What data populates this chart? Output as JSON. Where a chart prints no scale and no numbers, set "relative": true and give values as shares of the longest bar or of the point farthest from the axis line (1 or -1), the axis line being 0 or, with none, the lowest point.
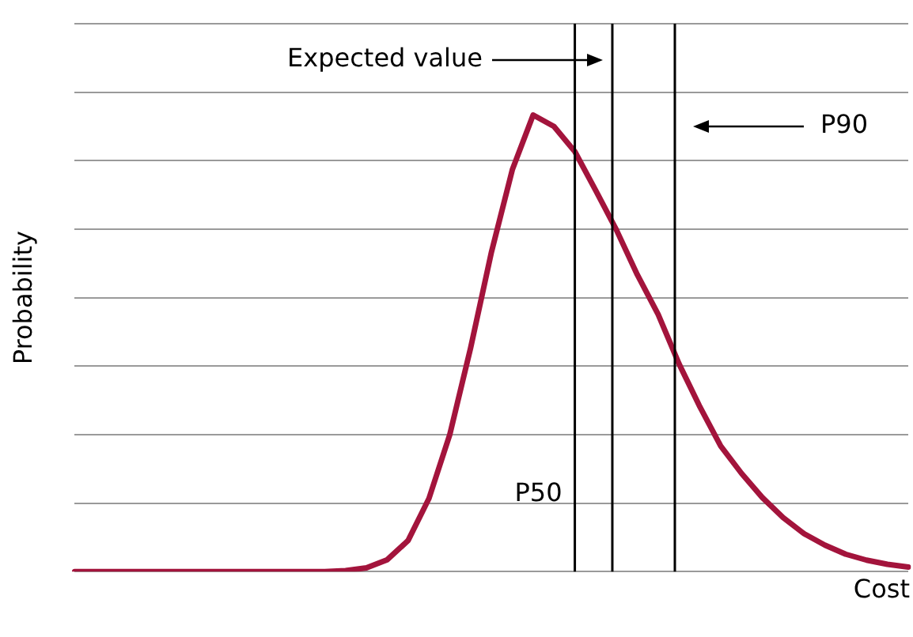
{
  "chart_data": {
    "type": "line",
    "xlabel": "Cost",
    "ylabel": "Probability",
    "relative": true,
    "grid": "y",
    "legend": false,
    "marker": "none",
    "line_style": "solid",
    "categories": [
      null,
      null,
      null,
      null,
      null,
      null,
      null,
      null,
      null,
      null,
      null,
      null,
      null,
      null,
      null,
      null,
      null,
      null,
      null,
      null,
      null,
      null,
      null,
      null,
      null,
      null,
      null,
      null,
      null,
      null,
      null,
      null,
      null,
      null,
      null,
      null,
      null,
      null,
      null,
      null,
      null
    ],
    "series": [
      {
        "color": "#a3143c",
        "values": [
          0,
          0,
          0,
          0,
          0,
          0,
          0,
          0,
          0,
          0,
          0,
          0,
          0,
          0.002,
          0.008,
          0.026,
          0.068,
          0.16,
          0.3,
          0.49,
          0.7,
          0.88,
          1,
          0.975,
          0.92,
          0.835,
          0.748,
          0.65,
          0.563,
          0.455,
          0.361,
          0.275,
          0.215,
          0.162,
          0.118,
          0.083,
          0.058,
          0.038,
          0.025,
          0.016,
          0.01
        ]
      }
    ],
    "annotations": [
      "Expected value",
      "P90",
      "P50"
    ]
  }
}
